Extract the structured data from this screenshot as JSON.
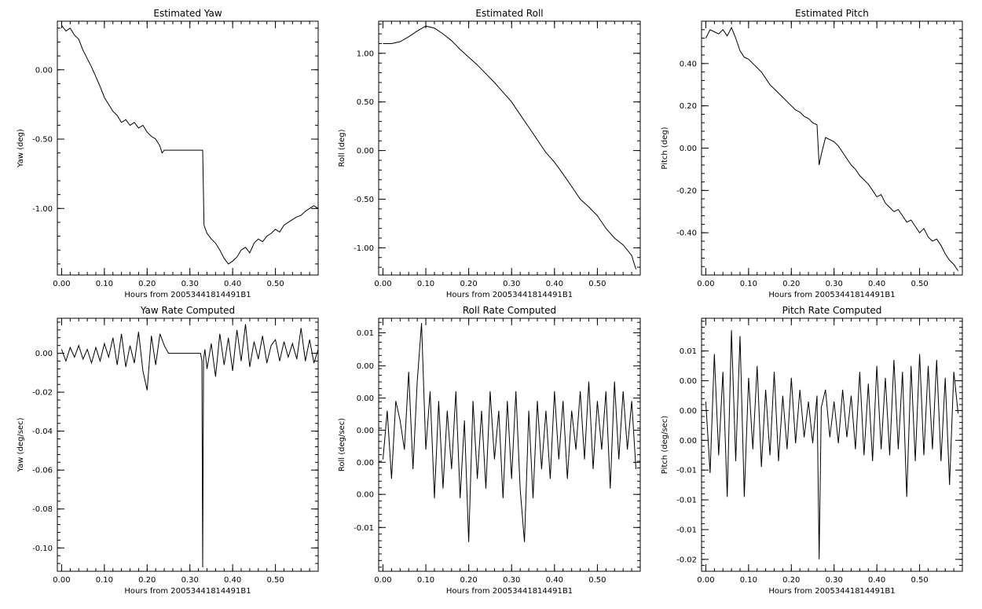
{
  "chart_data": [
    {
      "type": "line",
      "title": "Estimated Yaw",
      "xlabel": "Hours from 20053441814491B1",
      "ylabel": "Yaw (deg)",
      "xlim": [
        -0.01,
        0.6
      ],
      "ylim": [
        -1.48,
        0.35
      ],
      "xticks": [
        0.0,
        0.1,
        0.2,
        0.3,
        0.4,
        0.5
      ],
      "xticklabels": [
        "0.00",
        "0.10",
        "0.20",
        "0.30",
        "0.40",
        "0.50"
      ],
      "yticks": [
        0.0,
        -0.5,
        -1.0
      ],
      "yticklabels": [
        "0.00",
        "-0.50",
        "-1.00"
      ],
      "grid": false,
      "series": [
        {
          "x": [
            0.0,
            0.01,
            0.02,
            0.03,
            0.04,
            0.05,
            0.06,
            0.07,
            0.08,
            0.09,
            0.1,
            0.11,
            0.12,
            0.13,
            0.14,
            0.15,
            0.16,
            0.17,
            0.18,
            0.19,
            0.2,
            0.21,
            0.22,
            0.23,
            0.235,
            0.24,
            0.25,
            0.26,
            0.27,
            0.28,
            0.29,
            0.3,
            0.31,
            0.32,
            0.33,
            0.333,
            0.34,
            0.35,
            0.36,
            0.37,
            0.38,
            0.39,
            0.4,
            0.41,
            0.42,
            0.43,
            0.44,
            0.45,
            0.46,
            0.47,
            0.48,
            0.49,
            0.5,
            0.51,
            0.52,
            0.53,
            0.54,
            0.55,
            0.56,
            0.57,
            0.58,
            0.59,
            0.6
          ],
          "y": [
            0.32,
            0.28,
            0.3,
            0.25,
            0.22,
            0.14,
            0.08,
            0.02,
            -0.05,
            -0.12,
            -0.2,
            -0.25,
            -0.3,
            -0.33,
            -0.38,
            -0.36,
            -0.4,
            -0.38,
            -0.42,
            -0.4,
            -0.45,
            -0.48,
            -0.5,
            -0.55,
            -0.6,
            -0.58,
            -0.58,
            -0.58,
            -0.58,
            -0.58,
            -0.58,
            -0.58,
            -0.58,
            -0.58,
            -0.58,
            -1.12,
            -1.18,
            -1.22,
            -1.25,
            -1.3,
            -1.36,
            -1.4,
            -1.38,
            -1.35,
            -1.3,
            -1.28,
            -1.32,
            -1.25,
            -1.22,
            -1.24,
            -1.2,
            -1.18,
            -1.15,
            -1.17,
            -1.12,
            -1.1,
            -1.08,
            -1.06,
            -1.05,
            -1.02,
            -1.0,
            -0.98,
            -1.0
          ]
        }
      ]
    },
    {
      "type": "line",
      "title": "Estimated Roll",
      "xlabel": "Hours from 20053441814491B1",
      "ylabel": "Roll (deg)",
      "xlim": [
        -0.01,
        0.6
      ],
      "ylim": [
        -1.28,
        1.33
      ],
      "xticks": [
        0.0,
        0.1,
        0.2,
        0.3,
        0.4,
        0.5
      ],
      "xticklabels": [
        "0.00",
        "0.10",
        "0.20",
        "0.30",
        "0.40",
        "0.50"
      ],
      "yticks": [
        1.0,
        0.5,
        0.0,
        -0.5,
        -1.0
      ],
      "yticklabels": [
        "1.00",
        "0.50",
        "0.00",
        "-0.50",
        "-1.00"
      ],
      "grid": false,
      "series": [
        {
          "x": [
            0.0,
            0.02,
            0.04,
            0.06,
            0.08,
            0.1,
            0.12,
            0.14,
            0.16,
            0.18,
            0.2,
            0.22,
            0.24,
            0.26,
            0.28,
            0.3,
            0.32,
            0.34,
            0.36,
            0.38,
            0.4,
            0.42,
            0.44,
            0.46,
            0.48,
            0.5,
            0.52,
            0.54,
            0.56,
            0.58,
            0.59
          ],
          "y": [
            1.1,
            1.1,
            1.12,
            1.17,
            1.23,
            1.28,
            1.26,
            1.2,
            1.13,
            1.04,
            0.96,
            0.88,
            0.79,
            0.7,
            0.6,
            0.5,
            0.37,
            0.24,
            0.11,
            -0.02,
            -0.12,
            -0.24,
            -0.37,
            -0.5,
            -0.58,
            -0.67,
            -0.8,
            -0.9,
            -0.97,
            -1.08,
            -1.22
          ]
        }
      ]
    },
    {
      "type": "line",
      "title": "Estimated Pitch",
      "xlabel": "Hours from 20053441814491B1",
      "ylabel": "Pitch (deg)",
      "xlim": [
        -0.01,
        0.6
      ],
      "ylim": [
        -0.6,
        0.6
      ],
      "xticks": [
        0.0,
        0.1,
        0.2,
        0.3,
        0.4,
        0.5
      ],
      "xticklabels": [
        "0.00",
        "0.10",
        "0.20",
        "0.30",
        "0.40",
        "0.50"
      ],
      "yticks": [
        0.4,
        0.2,
        0.0,
        -0.2,
        -0.4
      ],
      "yticklabels": [
        "0.40",
        "0.20",
        "0.00",
        "-0.20",
        "-0.40"
      ],
      "grid": false,
      "series": [
        {
          "x": [
            0.0,
            0.01,
            0.02,
            0.03,
            0.04,
            0.05,
            0.06,
            0.07,
            0.08,
            0.09,
            0.1,
            0.11,
            0.12,
            0.13,
            0.14,
            0.15,
            0.16,
            0.17,
            0.18,
            0.19,
            0.2,
            0.21,
            0.22,
            0.23,
            0.24,
            0.25,
            0.26,
            0.265,
            0.27,
            0.28,
            0.29,
            0.3,
            0.31,
            0.32,
            0.33,
            0.34,
            0.35,
            0.36,
            0.37,
            0.38,
            0.39,
            0.4,
            0.41,
            0.42,
            0.43,
            0.44,
            0.45,
            0.46,
            0.47,
            0.48,
            0.49,
            0.5,
            0.51,
            0.52,
            0.53,
            0.54,
            0.55,
            0.56,
            0.57,
            0.58,
            0.59
          ],
          "y": [
            0.52,
            0.56,
            0.55,
            0.54,
            0.56,
            0.53,
            0.57,
            0.52,
            0.46,
            0.43,
            0.42,
            0.4,
            0.38,
            0.36,
            0.33,
            0.3,
            0.28,
            0.26,
            0.24,
            0.22,
            0.2,
            0.18,
            0.17,
            0.15,
            0.14,
            0.12,
            0.11,
            -0.08,
            -0.03,
            0.05,
            0.04,
            0.03,
            0.01,
            -0.02,
            -0.05,
            -0.08,
            -0.1,
            -0.13,
            -0.15,
            -0.17,
            -0.2,
            -0.23,
            -0.22,
            -0.26,
            -0.28,
            -0.3,
            -0.29,
            -0.32,
            -0.35,
            -0.34,
            -0.37,
            -0.4,
            -0.38,
            -0.42,
            -0.44,
            -0.43,
            -0.46,
            -0.5,
            -0.53,
            -0.55,
            -0.58
          ]
        }
      ]
    },
    {
      "type": "line",
      "title": "Yaw Rate Computed",
      "xlabel": "Hours from 20053441814491B1",
      "ylabel": "Yaw (deg/sec)",
      "xlim": [
        -0.01,
        0.6
      ],
      "ylim": [
        -0.112,
        0.018
      ],
      "xticks": [
        0.0,
        0.1,
        0.2,
        0.3,
        0.4,
        0.5
      ],
      "xticklabels": [
        "0.00",
        "0.10",
        "0.20",
        "0.30",
        "0.40",
        "0.50"
      ],
      "yticks": [
        0.0,
        -0.02,
        -0.04,
        -0.06,
        -0.08,
        -0.1
      ],
      "yticklabels": [
        "0.00",
        "-0.02",
        "-0.04",
        "-0.06",
        "-0.08",
        "-0.10"
      ],
      "grid": false,
      "series": [
        {
          "x": [
            0.0,
            0.01,
            0.02,
            0.03,
            0.04,
            0.05,
            0.06,
            0.07,
            0.08,
            0.09,
            0.1,
            0.11,
            0.12,
            0.13,
            0.14,
            0.15,
            0.16,
            0.17,
            0.18,
            0.19,
            0.2,
            0.21,
            0.22,
            0.23,
            0.24,
            0.25,
            0.3,
            0.32,
            0.325,
            0.328,
            0.33,
            0.332,
            0.335,
            0.34,
            0.35,
            0.36,
            0.37,
            0.38,
            0.39,
            0.4,
            0.41,
            0.42,
            0.43,
            0.44,
            0.45,
            0.46,
            0.47,
            0.48,
            0.49,
            0.5,
            0.51,
            0.52,
            0.53,
            0.54,
            0.55,
            0.56,
            0.57,
            0.58,
            0.59,
            0.6
          ],
          "y": [
            0.002,
            -0.004,
            0.003,
            -0.002,
            0.004,
            -0.003,
            0.002,
            -0.005,
            0.003,
            -0.004,
            0.005,
            -0.002,
            0.008,
            -0.006,
            0.01,
            -0.007,
            0.004,
            -0.005,
            0.011,
            -0.009,
            -0.019,
            0.009,
            -0.006,
            0.01,
            0.004,
            0.0,
            0.0,
            0.0,
            0.0,
            -0.004,
            -0.11,
            -0.003,
            0.002,
            -0.008,
            0.005,
            -0.012,
            0.01,
            -0.006,
            0.008,
            -0.009,
            0.012,
            -0.004,
            0.015,
            -0.007,
            0.006,
            -0.003,
            0.009,
            -0.005,
            0.004,
            0.007,
            -0.004,
            0.006,
            -0.002,
            0.005,
            -0.003,
            0.013,
            -0.004,
            0.007,
            -0.005,
            0.002
          ]
        }
      ]
    },
    {
      "type": "line",
      "title": "Roll Rate Computed",
      "xlabel": "Hours from 20053441814491B1",
      "ylabel": "Roll (deg/sec)",
      "xlim": [
        -0.01,
        0.6
      ],
      "ylim": [
        -0.0145,
        0.0115
      ],
      "xticks": [
        0.0,
        0.1,
        0.2,
        0.3,
        0.4,
        0.5
      ],
      "xticklabels": [
        "0.00",
        "0.10",
        "0.20",
        "0.30",
        "0.40",
        "0.50"
      ],
      "yticks": [
        0.01,
        0.0066,
        0.0033,
        0.0,
        -0.0033,
        -0.0066,
        -0.01
      ],
      "yticklabels": [
        "0.01",
        "0.00",
        "0.00",
        "0.00",
        "0.00",
        "0.00",
        "-0.01"
      ],
      "grid": false,
      "series": [
        {
          "x": [
            0.0,
            0.01,
            0.02,
            0.03,
            0.04,
            0.05,
            0.06,
            0.07,
            0.08,
            0.09,
            0.1,
            0.11,
            0.12,
            0.13,
            0.14,
            0.15,
            0.16,
            0.17,
            0.18,
            0.19,
            0.2,
            0.21,
            0.22,
            0.23,
            0.24,
            0.25,
            0.26,
            0.27,
            0.28,
            0.29,
            0.3,
            0.31,
            0.32,
            0.33,
            0.34,
            0.35,
            0.36,
            0.37,
            0.38,
            0.39,
            0.4,
            0.41,
            0.42,
            0.43,
            0.44,
            0.45,
            0.46,
            0.47,
            0.48,
            0.49,
            0.5,
            0.51,
            0.52,
            0.53,
            0.54,
            0.55,
            0.56,
            0.57,
            0.58,
            0.59
          ],
          "y": [
            -0.003,
            0.002,
            -0.005,
            0.003,
            0.001,
            -0.002,
            0.006,
            -0.004,
            0.005,
            0.011,
            -0.002,
            0.004,
            -0.007,
            0.003,
            -0.006,
            0.002,
            -0.004,
            0.004,
            -0.007,
            0.001,
            -0.0115,
            0.003,
            -0.005,
            0.002,
            -0.006,
            0.004,
            -0.003,
            0.002,
            -0.007,
            0.003,
            -0.005,
            0.004,
            -0.006,
            -0.0115,
            0.002,
            -0.007,
            0.003,
            -0.004,
            0.002,
            -0.005,
            0.004,
            -0.003,
            0.003,
            -0.005,
            0.002,
            -0.002,
            0.004,
            -0.003,
            0.005,
            -0.004,
            0.003,
            -0.002,
            0.004,
            -0.006,
            0.005,
            -0.003,
            0.004,
            -0.002,
            0.003,
            -0.004
          ]
        }
      ]
    },
    {
      "type": "line",
      "title": "Pitch Rate Computed",
      "xlabel": "Hours from 20053441814491B1",
      "ylabel": "Pitch (deg/sec)",
      "xlim": [
        -0.01,
        0.6
      ],
      "ylim": [
        -0.0245,
        0.018
      ],
      "xticks": [
        0.0,
        0.1,
        0.2,
        0.3,
        0.4,
        0.5
      ],
      "xticklabels": [
        "0.00",
        "0.10",
        "0.20",
        "0.30",
        "0.40",
        "0.50"
      ],
      "yticks": [
        0.0125,
        0.0075,
        0.0025,
        -0.0025,
        -0.0075,
        -0.0125,
        -0.0175,
        -0.0225
      ],
      "yticklabels": [
        "0.01",
        "0.00",
        "0.00",
        "0.00",
        "-0.01",
        "-0.01",
        "-0.01",
        "-0.02"
      ],
      "grid": false,
      "series": [
        {
          "x": [
            0.0,
            0.01,
            0.02,
            0.03,
            0.04,
            0.05,
            0.06,
            0.07,
            0.08,
            0.09,
            0.1,
            0.11,
            0.12,
            0.13,
            0.14,
            0.15,
            0.16,
            0.17,
            0.18,
            0.19,
            0.2,
            0.21,
            0.22,
            0.23,
            0.24,
            0.25,
            0.26,
            0.265,
            0.27,
            0.28,
            0.29,
            0.3,
            0.31,
            0.32,
            0.33,
            0.34,
            0.35,
            0.36,
            0.37,
            0.38,
            0.39,
            0.4,
            0.41,
            0.42,
            0.43,
            0.44,
            0.45,
            0.46,
            0.47,
            0.48,
            0.49,
            0.5,
            0.51,
            0.52,
            0.53,
            0.54,
            0.55,
            0.56,
            0.57,
            0.58,
            0.59
          ],
          "y": [
            0.004,
            -0.008,
            0.012,
            -0.005,
            0.009,
            -0.012,
            0.016,
            -0.006,
            0.015,
            -0.012,
            0.008,
            -0.004,
            0.01,
            -0.007,
            0.006,
            -0.005,
            0.009,
            -0.006,
            0.005,
            -0.004,
            0.008,
            -0.003,
            0.006,
            -0.002,
            0.004,
            -0.003,
            0.005,
            -0.0225,
            0.003,
            0.006,
            -0.002,
            0.004,
            -0.003,
            0.006,
            -0.002,
            0.005,
            -0.004,
            0.009,
            -0.005,
            0.007,
            -0.006,
            0.01,
            -0.004,
            0.008,
            -0.005,
            0.011,
            -0.004,
            0.009,
            -0.012,
            0.01,
            -0.006,
            0.012,
            -0.005,
            0.01,
            -0.004,
            0.011,
            -0.006,
            0.008,
            -0.01,
            0.009,
            0.002
          ]
        }
      ]
    }
  ]
}
